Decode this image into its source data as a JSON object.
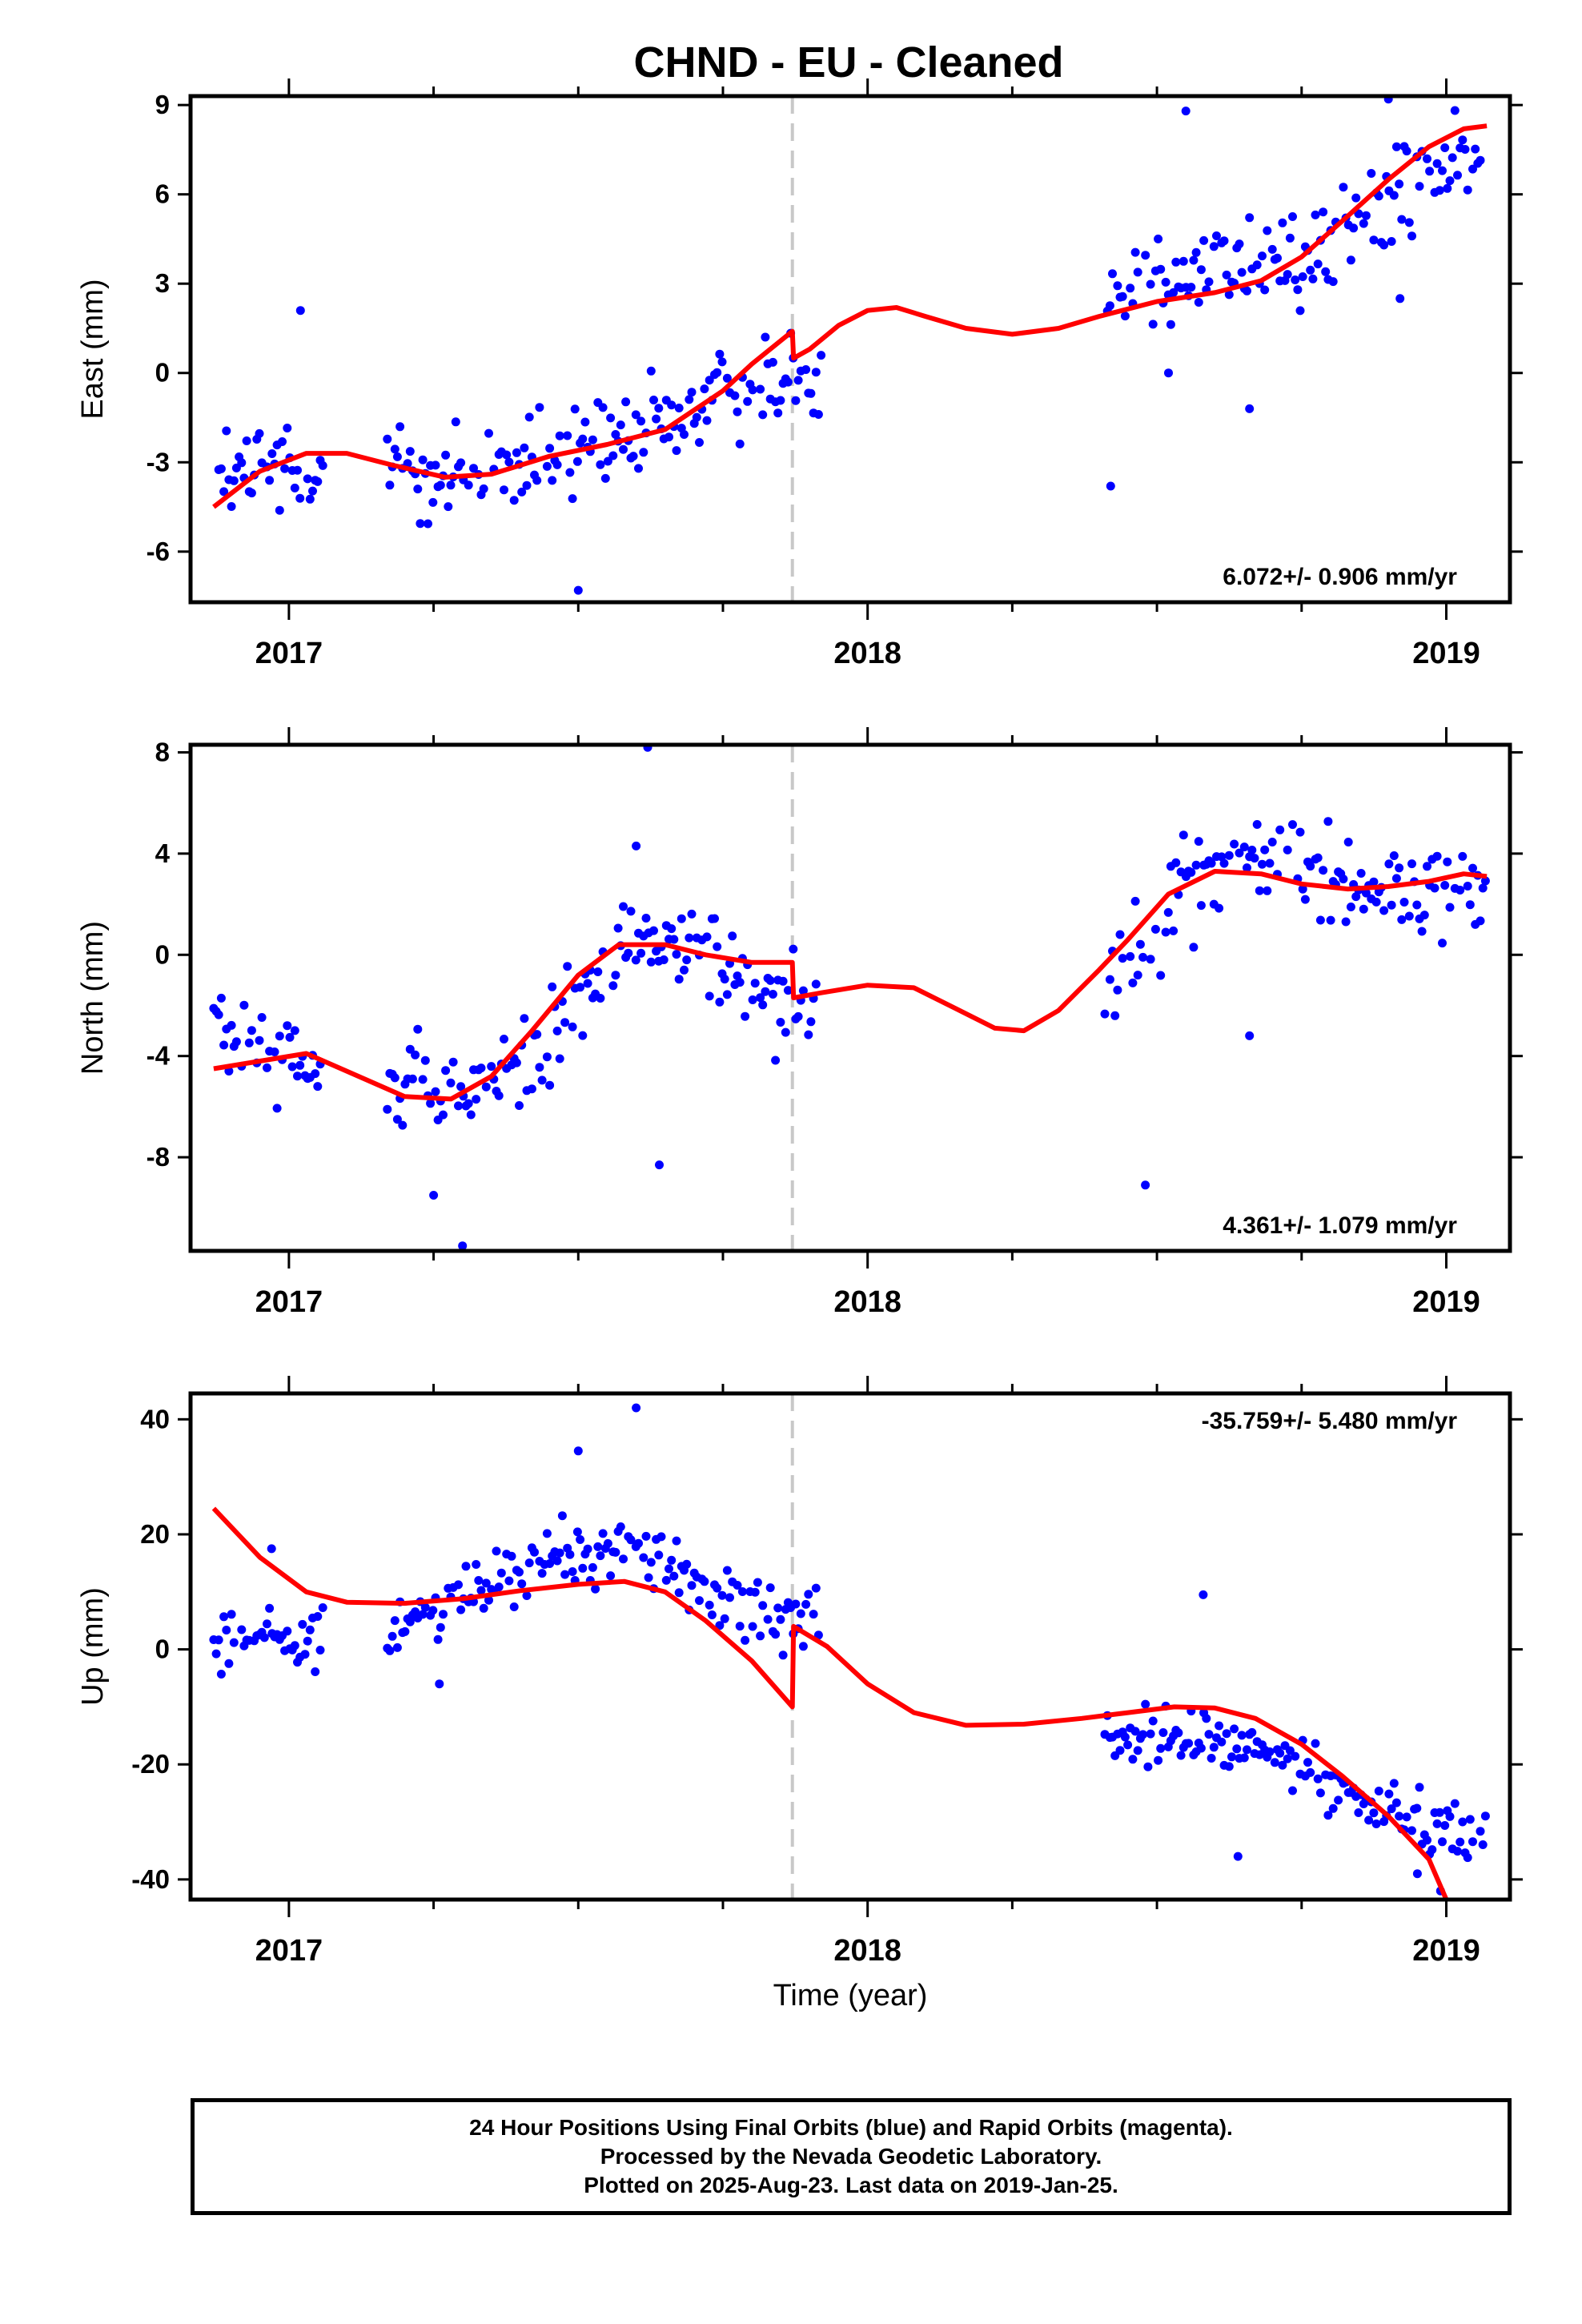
{
  "title": "CHND  - EU - Cleaned",
  "footer": {
    "line1": "24 Hour Positions Using Final Orbits (blue) and Rapid Orbits (magenta).",
    "line2": "Processed by the Nevada Geodetic Laboratory.",
    "line3": "Plotted on 2025-Aug-23. Last data on 2019-Jan-25."
  },
  "colors": {
    "points": "#0000ff",
    "fit": "#ff0000",
    "marker_line": "#c8c8c8",
    "axes": "#000000"
  },
  "chart_data": [
    {
      "type": "scatter",
      "name": "east",
      "ylabel": "East (mm)",
      "xlabel": "",
      "xlim": [
        2016.83,
        2019.11
      ],
      "ylim": [
        -7.7,
        9.3
      ],
      "yticks": [
        -6,
        -3,
        0,
        3,
        6,
        9
      ],
      "ytick_labels": [
        "-6",
        "-3",
        "0",
        "3",
        "6",
        "9"
      ],
      "xticks": [
        2017,
        2018,
        2019
      ],
      "xtick_labels": [
        "2017",
        "2018",
        "2019"
      ],
      "equipment_change": 2017.87,
      "rate_text": "6.072+/- 0.906 mm/yr",
      "rate_position": "bottom-right",
      "data_segments": [
        [
          2016.87,
          2017.06
        ],
        [
          2017.17,
          2017.92
        ],
        [
          2018.41,
          2019.07
        ]
      ],
      "trend_points": [
        [
          2016.87,
          -3.5
        ],
        [
          2017.06,
          -2.9
        ],
        [
          2017.17,
          -3.1
        ],
        [
          2017.3,
          -3.5
        ],
        [
          2017.45,
          -3.0
        ],
        [
          2017.6,
          -2.2
        ],
        [
          2017.75,
          -0.8
        ],
        [
          2017.92,
          0.2
        ],
        [
          2018.41,
          3.0
        ],
        [
          2018.55,
          3.5
        ],
        [
          2018.7,
          3.6
        ],
        [
          2018.85,
          5.0
        ],
        [
          2019.0,
          6.9
        ],
        [
          2019.07,
          7.0
        ]
      ],
      "seasonal": [
        0.9,
        0.0,
        0.0,
        0.0
      ],
      "scatter_sigma": 1.2,
      "outliers": [
        [
          2017.02,
          2.1
        ],
        [
          2017.5,
          -7.3
        ],
        [
          2018.42,
          -3.8
        ],
        [
          2018.55,
          8.8
        ],
        [
          2018.9,
          9.2
        ],
        [
          2018.92,
          2.5
        ],
        [
          2018.52,
          0.0
        ],
        [
          2018.66,
          -1.2
        ]
      ],
      "series": [
        {
          "name": "fit",
          "x": [
            2016.87,
            2016.95,
            2017.03,
            2017.1,
            2017.18,
            2017.27,
            2017.35,
            2017.45,
            2017.55,
            2017.65,
            2017.75,
            2017.8,
            2017.87,
            2017.872,
            2017.9,
            2017.95,
            2018.0,
            2018.05,
            2018.1,
            2018.17,
            2018.25,
            2018.33,
            2018.4,
            2018.5,
            2018.6,
            2018.68,
            2018.75,
            2018.82,
            2018.9,
            2018.97,
            2019.03,
            2019.07
          ],
          "y": [
            -4.5,
            -3.3,
            -2.7,
            -2.7,
            -3.1,
            -3.5,
            -3.4,
            -2.8,
            -2.4,
            -1.9,
            -0.6,
            0.3,
            1.4,
            0.5,
            0.8,
            1.6,
            2.1,
            2.2,
            1.9,
            1.5,
            1.3,
            1.5,
            1.9,
            2.4,
            2.7,
            3.1,
            3.9,
            5.1,
            6.5,
            7.6,
            8.2,
            8.3
          ]
        }
      ]
    },
    {
      "type": "scatter",
      "name": "north",
      "ylabel": "North (mm)",
      "xlabel": "",
      "xlim": [
        2016.83,
        2019.11
      ],
      "ylim": [
        -11.7,
        8.3
      ],
      "yticks": [
        -8,
        -4,
        0,
        4,
        8
      ],
      "ytick_labels": [
        "-8",
        "-4",
        "0",
        "4",
        "8"
      ],
      "xticks": [
        2017,
        2018,
        2019
      ],
      "xtick_labels": [
        "2017",
        "2018",
        "2019"
      ],
      "equipment_change": 2017.87,
      "rate_text": "4.361+/- 1.079 mm/yr",
      "rate_position": "bottom-right",
      "data_segments": [
        [
          2016.87,
          2017.06
        ],
        [
          2017.17,
          2017.92
        ],
        [
          2018.41,
          2019.07
        ]
      ],
      "trend_points": [
        [
          2016.87,
          -2.8
        ],
        [
          2017.06,
          -4.0
        ],
        [
          2017.17,
          -5.2
        ],
        [
          2017.3,
          -5.8
        ],
        [
          2017.45,
          -3.5
        ],
        [
          2017.6,
          1.0
        ],
        [
          2017.75,
          -0.5
        ],
        [
          2017.92,
          -2.2
        ],
        [
          2018.41,
          -1.5
        ],
        [
          2018.55,
          3.0
        ],
        [
          2018.7,
          3.8
        ],
        [
          2018.85,
          2.8
        ],
        [
          2019.0,
          2.5
        ],
        [
          2019.07,
          2.5
        ]
      ],
      "seasonal": [
        0.0,
        0.0,
        0.0,
        0.0
      ],
      "scatter_sigma": 1.3,
      "outliers": [
        [
          2017.25,
          -9.5
        ],
        [
          2017.3,
          -11.5
        ],
        [
          2017.62,
          8.2
        ],
        [
          2017.64,
          -8.3
        ],
        [
          2018.48,
          -9.1
        ],
        [
          2018.66,
          -3.2
        ],
        [
          2017.6,
          4.3
        ]
      ],
      "series": [
        {
          "name": "fit",
          "x": [
            2016.87,
            2016.95,
            2017.03,
            2017.1,
            2017.2,
            2017.28,
            2017.35,
            2017.42,
            2017.5,
            2017.57,
            2017.65,
            2017.72,
            2017.8,
            2017.87,
            2017.872,
            2017.92,
            2018.0,
            2018.08,
            2018.15,
            2018.22,
            2018.27,
            2018.33,
            2018.4,
            2018.45,
            2018.52,
            2018.6,
            2018.68,
            2018.75,
            2018.83,
            2018.9,
            2018.97,
            2019.03,
            2019.07
          ],
          "y": [
            -4.5,
            -4.2,
            -3.9,
            -4.6,
            -5.6,
            -5.7,
            -4.8,
            -3.0,
            -0.8,
            0.4,
            0.4,
            0.0,
            -0.3,
            -0.3,
            -1.7,
            -1.5,
            -1.2,
            -1.3,
            -2.1,
            -2.9,
            -3.0,
            -2.2,
            -0.6,
            0.6,
            2.4,
            3.3,
            3.2,
            2.8,
            2.6,
            2.7,
            2.9,
            3.2,
            3.1
          ]
        }
      ]
    },
    {
      "type": "scatter",
      "name": "up",
      "ylabel": "Up (mm)",
      "xlabel": "Time (year)",
      "xlim": [
        2016.83,
        2019.11
      ],
      "ylim": [
        -43.5,
        44.5
      ],
      "yticks": [
        -40,
        -20,
        0,
        20,
        40
      ],
      "ytick_labels": [
        "-40",
        "-20",
        "0",
        "20",
        "40"
      ],
      "xticks": [
        2017,
        2018,
        2019
      ],
      "xtick_labels": [
        "2017",
        "2018",
        "2019"
      ],
      "equipment_change": 2017.87,
      "rate_text": "-35.759+/- 5.480 mm/yr",
      "rate_position": "top-right",
      "data_segments": [
        [
          2016.87,
          2017.06
        ],
        [
          2017.17,
          2017.92
        ],
        [
          2018.41,
          2019.07
        ]
      ],
      "trend_points": [
        [
          2016.87,
          2.0
        ],
        [
          2017.06,
          2.0
        ],
        [
          2017.17,
          3.0
        ],
        [
          2017.3,
          9.0
        ],
        [
          2017.45,
          16.0
        ],
        [
          2017.6,
          18.0
        ],
        [
          2017.75,
          8.0
        ],
        [
          2017.92,
          5.0
        ],
        [
          2018.41,
          -16.0
        ],
        [
          2018.55,
          -15.0
        ],
        [
          2018.7,
          -18.0
        ],
        [
          2018.85,
          -26.0
        ],
        [
          2019.0,
          -31.0
        ],
        [
          2019.07,
          -30.0
        ]
      ],
      "seasonal": [
        0.0,
        0.0,
        0.0,
        0.0
      ],
      "scatter_sigma": 3.6,
      "outliers": [
        [
          2017.6,
          42.0
        ],
        [
          2017.5,
          34.5
        ],
        [
          2017.26,
          -6.0
        ],
        [
          2018.58,
          9.5
        ],
        [
          2018.64,
          -36.0
        ],
        [
          2018.95,
          -39.0
        ],
        [
          2018.99,
          -42.0
        ],
        [
          2016.97,
          17.5
        ]
      ],
      "series": [
        {
          "name": "fit",
          "x": [
            2016.87,
            2016.95,
            2017.03,
            2017.1,
            2017.2,
            2017.3,
            2017.4,
            2017.5,
            2017.58,
            2017.65,
            2017.72,
            2017.8,
            2017.87,
            2017.872,
            2017.93,
            2018.0,
            2018.08,
            2018.17,
            2018.27,
            2018.37,
            2018.45,
            2018.53,
            2018.6,
            2018.67,
            2018.75,
            2018.82,
            2018.9,
            2018.97,
            2019.0
          ],
          "y": [
            24.5,
            16.0,
            10.0,
            8.2,
            8.0,
            8.8,
            10.2,
            11.3,
            11.8,
            10.0,
            5.0,
            -2.0,
            -10.0,
            4.0,
            0.5,
            -6.0,
            -11.0,
            -13.2,
            -13.0,
            -12.0,
            -11.0,
            -10.0,
            -10.2,
            -12.0,
            -16.5,
            -22.0,
            -29.0,
            -36.5,
            -43.5
          ]
        }
      ]
    }
  ]
}
